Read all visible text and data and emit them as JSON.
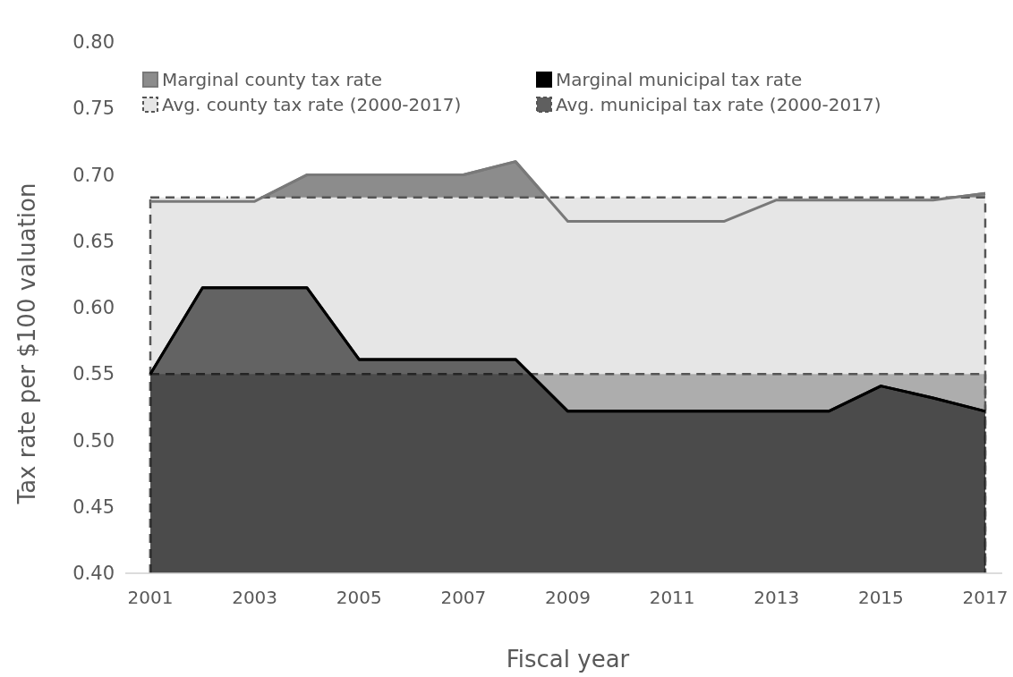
{
  "chart_data": {
    "type": "area",
    "xlabel": "Fiscal year",
    "ylabel": "Tax rate per $100 valuation",
    "x": [
      2001,
      2002,
      2003,
      2004,
      2005,
      2006,
      2007,
      2008,
      2009,
      2010,
      2011,
      2012,
      2013,
      2014,
      2015,
      2016,
      2017
    ],
    "xlim": [
      2001,
      2017
    ],
    "xticks": [
      2001,
      2003,
      2005,
      2007,
      2009,
      2011,
      2013,
      2015,
      2017
    ],
    "ylim": [
      0.4,
      0.8
    ],
    "yticks": [
      {
        "value": 0.4,
        "label": "0.40"
      },
      {
        "value": 0.45,
        "label": "0.45"
      },
      {
        "value": 0.5,
        "label": "0.50"
      },
      {
        "value": 0.55,
        "label": "0.55"
      },
      {
        "value": 0.6,
        "label": "0.60"
      },
      {
        "value": 0.65,
        "label": "0.65"
      },
      {
        "value": 0.7,
        "label": "0.70"
      },
      {
        "value": 0.75,
        "label": "0.75"
      },
      {
        "value": 0.8,
        "label": "0.80"
      }
    ],
    "grid": false,
    "legend": "top",
    "series": [
      {
        "name": "Marginal county tax rate",
        "color": "#8c8c8c",
        "line_style": "solid",
        "values": [
          0.68,
          0.68,
          0.68,
          0.7,
          0.7,
          0.7,
          0.7,
          0.71,
          0.665,
          0.665,
          0.665,
          0.665,
          0.681,
          0.681,
          0.681,
          0.681,
          0.686
        ]
      },
      {
        "name": "Marginal municipal tax rate",
        "color": "#000000",
        "line_style": "solid",
        "values": [
          0.55,
          0.615,
          0.615,
          0.615,
          0.561,
          0.561,
          0.561,
          0.561,
          0.522,
          0.522,
          0.522,
          0.522,
          0.522,
          0.522,
          0.541,
          0.532,
          0.522
        ]
      },
      {
        "name": "Avg. county tax rate (2000-2017)",
        "color": "#e6e6e6",
        "line_style": "dashed",
        "values": [
          0.683,
          0.683,
          0.683,
          0.683,
          0.683,
          0.683,
          0.683,
          0.683,
          0.683,
          0.683,
          0.683,
          0.683,
          0.683,
          0.683,
          0.683,
          0.683,
          0.683
        ]
      },
      {
        "name": "Avg. municipal tax rate (2000-2017)",
        "color": "#5f5f5f",
        "line_style": "dashed",
        "values": [
          0.55,
          0.55,
          0.55,
          0.55,
          0.55,
          0.55,
          0.55,
          0.55,
          0.55,
          0.55,
          0.55,
          0.55,
          0.55,
          0.55,
          0.55,
          0.55,
          0.55
        ]
      }
    ]
  }
}
